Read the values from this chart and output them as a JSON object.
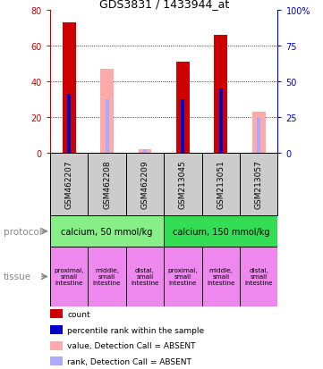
{
  "title": "GDS3831 / 1433944_at",
  "samples": [
    "GSM462207",
    "GSM462208",
    "GSM462209",
    "GSM213045",
    "GSM213051",
    "GSM213057"
  ],
  "count_values": [
    73,
    0,
    0,
    51,
    66,
    0
  ],
  "rank_values": [
    33,
    0,
    0,
    30,
    36,
    0
  ],
  "absent_count_values": [
    0,
    47,
    2,
    0,
    0,
    23
  ],
  "absent_rank_values": [
    0,
    30,
    2,
    0,
    0,
    20
  ],
  "ylim_left": [
    0,
    80
  ],
  "ylim_right": [
    0,
    100
  ],
  "yticks_left": [
    0,
    20,
    40,
    60,
    80
  ],
  "yticks_right": [
    0,
    25,
    50,
    75,
    100
  ],
  "ytick_labels_left": [
    "0",
    "20",
    "40",
    "60",
    "80"
  ],
  "ytick_labels_right": [
    "0",
    "25",
    "50",
    "75",
    "100%"
  ],
  "protocols": [
    {
      "label": "calcium, 50 mmol/kg",
      "start": 0,
      "end": 3,
      "color": "#88ee88"
    },
    {
      "label": "calcium, 150 mmol/kg",
      "start": 3,
      "end": 6,
      "color": "#33dd55"
    }
  ],
  "tissues": [
    {
      "label": "proximal,\nsmall\nintestine",
      "col": 0,
      "color": "#ee88ee"
    },
    {
      "label": "middle,\nsmall\nintestine",
      "col": 1,
      "color": "#ee88ee"
    },
    {
      "label": "distal,\nsmall\nintestine",
      "col": 2,
      "color": "#ee88ee"
    },
    {
      "label": "proximal,\nsmall\nintestine",
      "col": 3,
      "color": "#ee88ee"
    },
    {
      "label": "middle,\nsmall\nintestine",
      "col": 4,
      "color": "#ee88ee"
    },
    {
      "label": "distal,\nsmall\nintestine",
      "col": 5,
      "color": "#ee88ee"
    }
  ],
  "bar_width": 0.35,
  "count_color": "#cc0000",
  "rank_color": "#0000cc",
  "absent_count_color": "#ffaaaa",
  "absent_rank_color": "#aaaaff",
  "bg_color": "#ffffff",
  "plot_bg": "#ffffff",
  "sample_box_color": "#cccccc",
  "left_axis_color": "#cc0000",
  "right_axis_color": "#0000cc",
  "legend_items": [
    {
      "color": "#cc0000",
      "label": "count"
    },
    {
      "color": "#0000cc",
      "label": "percentile rank within the sample"
    },
    {
      "color": "#ffaaaa",
      "label": "value, Detection Call = ABSENT"
    },
    {
      "color": "#aaaaff",
      "label": "rank, Detection Call = ABSENT"
    }
  ]
}
